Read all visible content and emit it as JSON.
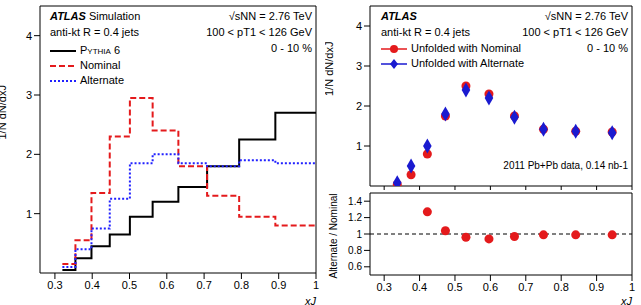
{
  "chart_data": [
    {
      "type": "line",
      "title": "ATLAS",
      "subtitle": "Simulation",
      "annotations": [
        "anti-kt R = 0.4 jets",
        "√sNN = 2.76 TeV",
        "100 < pT1 < 126 GeV",
        "0 - 10 %"
      ],
      "x_label": "xJ",
      "y_label": "1/N dN/dxJ",
      "bins": [
        0.32,
        0.355,
        0.398,
        0.447,
        0.501,
        0.562,
        0.631,
        0.708,
        0.794,
        0.891,
        1.0
      ],
      "series": [
        {
          "name": "Pythia 6",
          "color": "#000000",
          "line_style": "solid",
          "values": [
            0.05,
            0.25,
            0.45,
            0.65,
            0.95,
            1.2,
            1.45,
            1.8,
            2.25,
            2.7
          ]
        },
        {
          "name": "Nominal",
          "color": "#e41a1c",
          "line_style": "dashed",
          "values": [
            0.15,
            0.55,
            1.35,
            2.3,
            2.95,
            2.4,
            1.8,
            1.3,
            0.95,
            0.8
          ]
        },
        {
          "name": "Alternate",
          "color": "#2020ff",
          "line_style": "dotted",
          "values": [
            0.1,
            0.4,
            0.75,
            1.25,
            1.85,
            2.0,
            1.85,
            1.8,
            1.9,
            1.85
          ]
        }
      ],
      "xlim": [
        0.26,
        1.0
      ],
      "xticks": [
        0.3,
        0.4,
        0.5,
        0.6,
        0.7,
        0.8,
        0.9,
        1
      ],
      "ylim": [
        0,
        4.5
      ],
      "yticks": [
        1,
        2,
        3,
        4
      ],
      "grid": false,
      "legend": "upper left"
    },
    {
      "type": "scatter",
      "title": "ATLAS",
      "annotations": [
        "anti-kt R = 0.4 jets",
        "√sNN = 2.76 TeV",
        "100 < pT1 < 126 GeV",
        "0 - 10 %",
        "2011 Pb+Pb data, 0.14 nb-1"
      ],
      "y_label": "1/N dN/dxJ",
      "bins": [
        0.32,
        0.355,
        0.398,
        0.447,
        0.501,
        0.562,
        0.631,
        0.708,
        0.794,
        0.891,
        1.0
      ],
      "x": [
        0.337,
        0.376,
        0.422,
        0.473,
        0.531,
        0.596,
        0.668,
        0.75,
        0.841,
        0.944
      ],
      "series": [
        {
          "name": "Unfolded with Nominal",
          "color": "#e41a1c",
          "marker": "circle",
          "values": [
            0.04,
            0.28,
            0.8,
            1.75,
            2.5,
            2.3,
            1.75,
            1.42,
            1.37,
            1.35
          ]
        },
        {
          "name": "Unfolded with Alternate",
          "color": "#1a1ad0",
          "marker": "diamond",
          "values": [
            0.08,
            0.5,
            1.0,
            1.8,
            2.4,
            2.2,
            1.72,
            1.42,
            1.37,
            1.33
          ]
        }
      ],
      "xlim": [
        0.26,
        1.0
      ],
      "xticks": [
        0.3,
        0.4,
        0.5,
        0.6,
        0.7,
        0.8,
        0.9,
        1
      ],
      "ylim": [
        0,
        4.5
      ],
      "yticks": [
        1,
        2,
        3,
        4
      ],
      "tick_labels": "y",
      "legend": "upper left"
    },
    {
      "type": "scatter",
      "x_label": "xJ",
      "y_label": "Alternate / Nominal",
      "bins": [
        0.32,
        0.355,
        0.398,
        0.447,
        0.501,
        0.562,
        0.631,
        0.708,
        0.794,
        0.891,
        1.0
      ],
      "x": [
        0.337,
        0.376,
        0.422,
        0.473,
        0.531,
        0.596,
        0.668,
        0.75,
        0.841,
        0.944
      ],
      "series": [
        {
          "color": "#e41a1c",
          "marker": "circle",
          "values": [
            null,
            null,
            1.27,
            1.04,
            0.96,
            0.94,
            0.97,
            0.99,
            0.99,
            0.99
          ]
        }
      ],
      "reference_line": 1,
      "xlim": [
        0.26,
        1.0
      ],
      "xticks": [
        0.3,
        0.4,
        0.5,
        0.6,
        0.7,
        0.8,
        0.9,
        1
      ],
      "ylim": [
        0.5,
        1.5
      ],
      "yticks": [
        0.6,
        0.8,
        1,
        1.2,
        1.4
      ]
    }
  ]
}
